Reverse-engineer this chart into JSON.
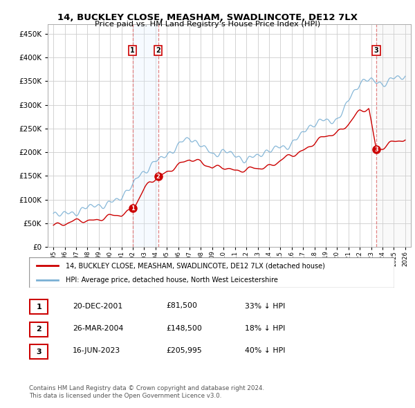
{
  "title": "14, BUCKLEY CLOSE, MEASHAM, SWADLINCOTE, DE12 7LX",
  "subtitle": "Price paid vs. HM Land Registry's House Price Index (HPI)",
  "ylabel_ticks": [
    0,
    50000,
    100000,
    150000,
    200000,
    250000,
    300000,
    350000,
    400000,
    450000
  ],
  "ylim": [
    0,
    470000
  ],
  "xlim_start": 1994.5,
  "xlim_end": 2026.5,
  "sale_dates": [
    2001.97,
    2004.23,
    2023.46
  ],
  "sale_prices": [
    81500,
    148500,
    205995
  ],
  "sale_labels": [
    "1",
    "2",
    "3"
  ],
  "legend_red": "14, BUCKLEY CLOSE, MEASHAM, SWADLINCOTE, DE12 7LX (detached house)",
  "legend_blue": "HPI: Average price, detached house, North West Leicestershire",
  "table_rows": [
    {
      "num": "1",
      "date": "20-DEC-2001",
      "price": "£81,500",
      "pct": "33% ↓ HPI"
    },
    {
      "num": "2",
      "date": "26-MAR-2004",
      "price": "£148,500",
      "pct": "18% ↓ HPI"
    },
    {
      "num": "3",
      "date": "16-JUN-2023",
      "price": "£205,995",
      "pct": "40% ↓ HPI"
    }
  ],
  "footer1": "Contains HM Land Registry data © Crown copyright and database right 2024.",
  "footer2": "This data is licensed under the Open Government Licence v3.0.",
  "grid_color": "#cccccc",
  "background_color": "#ffffff",
  "red_color": "#cc0000",
  "blue_color": "#7ab0d4",
  "vline_color_12": "#e8b4b8",
  "vline_color_3": "#e8b4b8",
  "span_color_12": "#ddeeff",
  "span_color_3": "#eeeeee",
  "hpi_years": [
    1995,
    1996,
    1997,
    1998,
    1999,
    2000,
    2001,
    2002,
    2003,
    2004,
    2005,
    2006,
    2007,
    2008,
    2009,
    2010,
    2011,
    2012,
    2013,
    2014,
    2015,
    2016,
    2017,
    2018,
    2019,
    2020,
    2021,
    2022,
    2023,
    2024,
    2025,
    2026
  ],
  "hpi_prices": [
    68000,
    72000,
    76000,
    80000,
    85000,
    95000,
    108000,
    128000,
    158000,
    185000,
    195000,
    210000,
    230000,
    220000,
    195000,
    198000,
    193000,
    188000,
    192000,
    200000,
    210000,
    222000,
    240000,
    258000,
    268000,
    272000,
    305000,
    345000,
    355000,
    348000,
    352000,
    358000
  ],
  "red_years": [
    1995,
    1996,
    1997,
    1998,
    1999,
    2000,
    2001,
    2001.97,
    2002.5,
    2003,
    2003.5,
    2004.23,
    2005,
    2006,
    2007,
    2008,
    2009,
    2010,
    2011,
    2012,
    2013,
    2014,
    2015,
    2016,
    2017,
    2018,
    2019,
    2020,
    2021,
    2022,
    2022.8,
    2023.46,
    2024,
    2025,
    2026
  ],
  "red_prices": [
    48000,
    50000,
    53000,
    56000,
    59000,
    63000,
    68000,
    81500,
    100000,
    120000,
    135000,
    148500,
    160000,
    170000,
    185000,
    182000,
    165000,
    168000,
    163000,
    162000,
    165000,
    172000,
    182000,
    192000,
    205000,
    220000,
    232000,
    243000,
    260000,
    285000,
    293000,
    205995,
    210000,
    220000,
    228000
  ]
}
